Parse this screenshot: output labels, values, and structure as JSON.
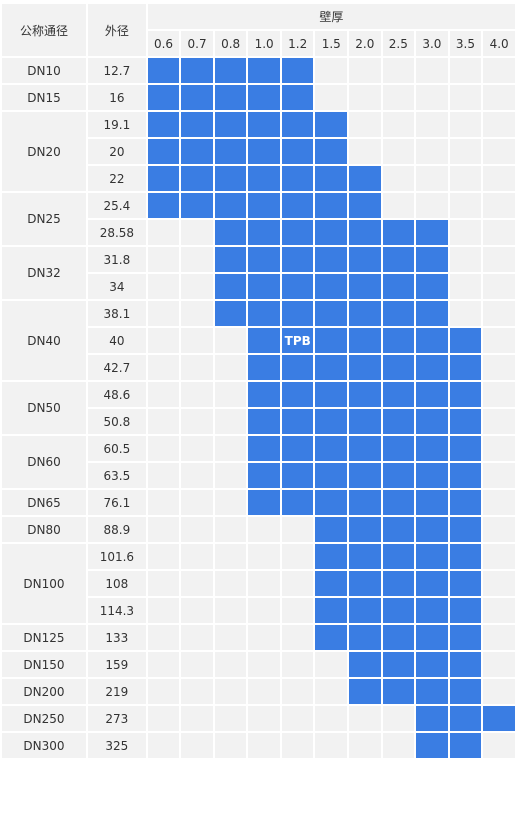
{
  "headers": {
    "nominal": "公称通径",
    "outer_diameter": "外径",
    "wall_thickness": "壁厚",
    "wall_values": [
      "0.6",
      "0.7",
      "0.8",
      "1.0",
      "1.2",
      "1.5",
      "2.0",
      "2.5",
      "3.0",
      "3.5",
      "4.0"
    ]
  },
  "groups": [
    {
      "dn": "DN10",
      "rows": [
        {
          "od": "12.7",
          "range": [
            0,
            4
          ]
        }
      ]
    },
    {
      "dn": "DN15",
      "rows": [
        {
          "od": "16",
          "range": [
            0,
            4
          ]
        }
      ]
    },
    {
      "dn": "DN20",
      "rows": [
        {
          "od": "19.1",
          "range": [
            0,
            5
          ]
        },
        {
          "od": "20",
          "range": [
            0,
            5
          ]
        },
        {
          "od": "22",
          "range": [
            0,
            6
          ]
        }
      ]
    },
    {
      "dn": "DN25",
      "rows": [
        {
          "od": "25.4",
          "range": [
            0,
            6
          ]
        },
        {
          "od": "28.58",
          "range": [
            2,
            8
          ]
        }
      ]
    },
    {
      "dn": "DN32",
      "rows": [
        {
          "od": "31.8",
          "range": [
            2,
            8
          ]
        },
        {
          "od": "34",
          "range": [
            2,
            8
          ]
        }
      ]
    },
    {
      "dn": "DN40",
      "rows": [
        {
          "od": "38.1",
          "range": [
            2,
            8
          ]
        },
        {
          "od": "40",
          "range": [
            3,
            9
          ],
          "label_col": 4,
          "label": "TPB"
        },
        {
          "od": "42.7",
          "range": [
            3,
            9
          ]
        }
      ]
    },
    {
      "dn": "DN50",
      "rows": [
        {
          "od": "48.6",
          "range": [
            3,
            9
          ]
        },
        {
          "od": "50.8",
          "range": [
            3,
            9
          ]
        }
      ]
    },
    {
      "dn": "DN60",
      "rows": [
        {
          "od": "60.5",
          "range": [
            3,
            9
          ]
        },
        {
          "od": "63.5",
          "range": [
            3,
            9
          ]
        }
      ]
    },
    {
      "dn": "DN65",
      "rows": [
        {
          "od": "76.1",
          "range": [
            3,
            9
          ]
        }
      ]
    },
    {
      "dn": "DN80",
      "rows": [
        {
          "od": "88.9",
          "range": [
            5,
            9
          ]
        }
      ]
    },
    {
      "dn": "DN100",
      "rows": [
        {
          "od": "101.6",
          "range": [
            5,
            9
          ]
        },
        {
          "od": "108",
          "range": [
            5,
            9
          ]
        },
        {
          "od": "114.3",
          "range": [
            5,
            9
          ]
        }
      ]
    },
    {
      "dn": "DN125",
      "rows": [
        {
          "od": "133",
          "range": [
            5,
            9
          ]
        }
      ]
    },
    {
      "dn": "DN150",
      "rows": [
        {
          "od": "159",
          "range": [
            6,
            9
          ]
        }
      ]
    },
    {
      "dn": "DN200",
      "rows": [
        {
          "od": "219",
          "range": [
            6,
            9
          ]
        }
      ]
    },
    {
      "dn": "DN250",
      "rows": [
        {
          "od": "273",
          "range": [
            8,
            10
          ]
        }
      ]
    },
    {
      "dn": "DN300",
      "rows": [
        {
          "od": "325",
          "range": [
            8,
            9
          ]
        }
      ]
    }
  ],
  "colors": {
    "filled": "#3a7de3",
    "empty": "#f2f2f2",
    "text": "#333333"
  }
}
